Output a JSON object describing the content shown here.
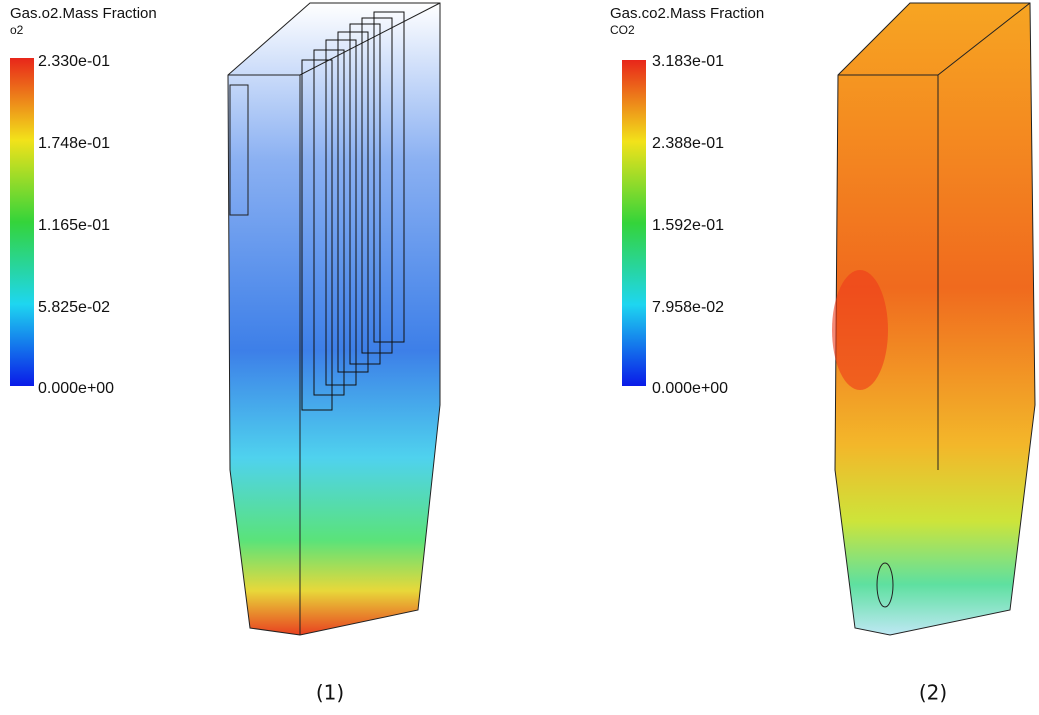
{
  "panels": [
    {
      "title": "Gas.o2.Mass Fraction",
      "variable": "o2",
      "ticks": [
        "2.330e-01",
        "1.748e-01",
        "1.165e-01",
        "5.825e-02",
        "0.000e+00"
      ],
      "caption": "(1)"
    },
    {
      "title": "Gas.co2.Mass Fraction",
      "variable": "CO2",
      "ticks": [
        "3.183e-01",
        "2.388e-01",
        "1.592e-01",
        "7.958e-02",
        "0.000e+00"
      ],
      "caption": "(2)"
    }
  ]
}
